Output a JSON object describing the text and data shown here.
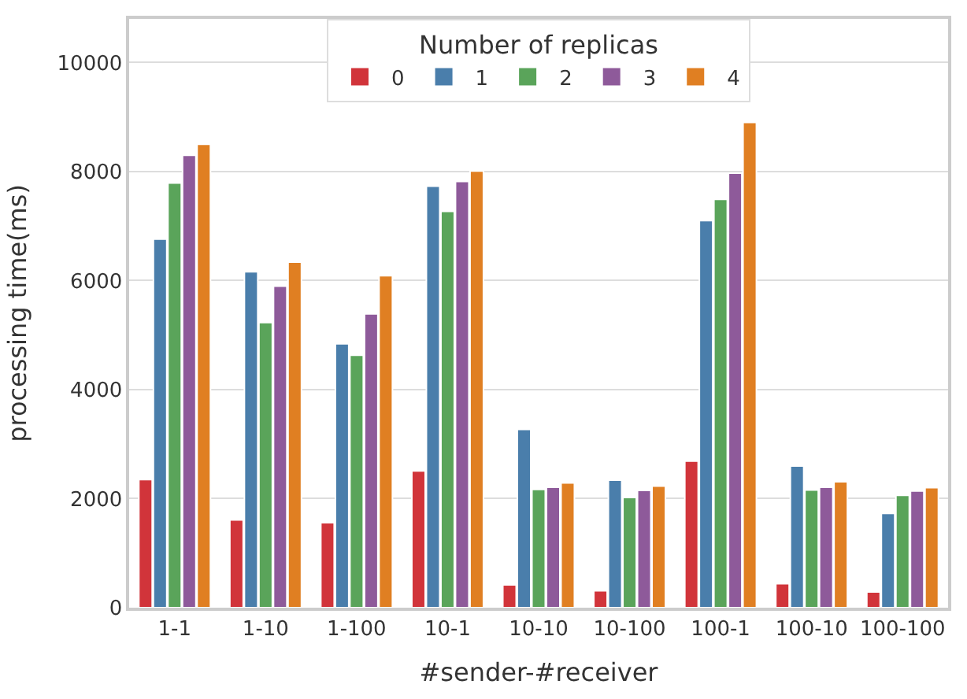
{
  "chart_data": {
    "type": "bar",
    "xlabel": "#sender-#receiver",
    "ylabel": "processing time(ms)",
    "legend_title": "Number of replicas",
    "legend": "top",
    "grid": "y",
    "ylim": [
      0,
      10800
    ],
    "yticks": [
      0,
      2000,
      4000,
      6000,
      8000,
      10000
    ],
    "categories": [
      "1-1",
      "1-10",
      "1-100",
      "10-1",
      "10-10",
      "10-100",
      "100-1",
      "100-10",
      "100-100"
    ],
    "series": [
      {
        "name": "0",
        "color": "#d1343a",
        "values": [
          2350,
          1610,
          1560,
          2510,
          420,
          310,
          2690,
          440,
          290
        ]
      },
      {
        "name": "1",
        "color": "#4a7eab",
        "values": [
          6760,
          6160,
          4840,
          7730,
          3270,
          2340,
          7100,
          2600,
          1730
        ]
      },
      {
        "name": "2",
        "color": "#5aa45a",
        "values": [
          7790,
          5230,
          4630,
          7270,
          2170,
          2020,
          7490,
          2160,
          2060
        ]
      },
      {
        "name": "3",
        "color": "#8e5a9a",
        "values": [
          8300,
          5900,
          5390,
          7820,
          2210,
          2150,
          7970,
          2210,
          2140
        ]
      },
      {
        "name": "4",
        "color": "#e07f22",
        "values": [
          8500,
          6340,
          6090,
          8010,
          2290,
          2230,
          8900,
          2310,
          2200
        ]
      }
    ]
  }
}
